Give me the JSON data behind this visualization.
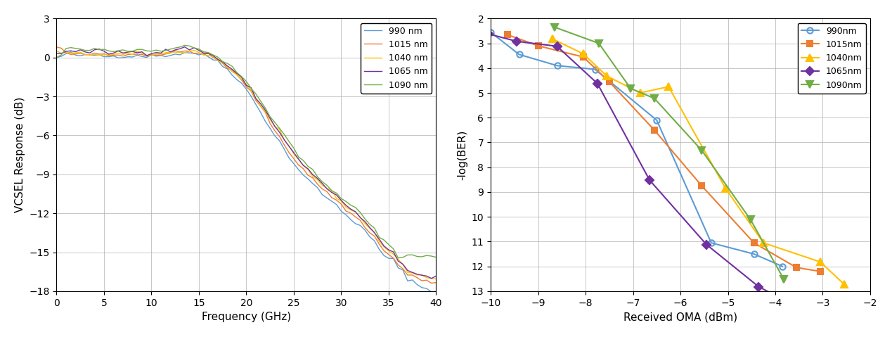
{
  "left_plot": {
    "xlabel": "Frequency (GHz)",
    "ylabel": "VCSEL Response (dB)",
    "xlim": [
      0,
      40
    ],
    "ylim": [
      -18,
      3
    ],
    "yticks": [
      3,
      0,
      -3,
      -6,
      -9,
      -12,
      -15,
      -18
    ],
    "xticks": [
      0,
      5,
      10,
      15,
      20,
      25,
      30,
      35,
      40
    ],
    "series": [
      {
        "label": "990 nm",
        "color": "#5b9bd5",
        "freq": [
          0,
          0.5,
          1,
          1.5,
          2,
          2.5,
          3,
          3.5,
          4,
          4.5,
          5,
          5.5,
          6,
          6.5,
          7,
          7.5,
          8,
          8.5,
          9,
          9.5,
          10,
          10.5,
          11,
          11.5,
          12,
          12.5,
          13,
          13.5,
          14,
          14.5,
          15,
          15.5,
          16,
          16.5,
          17,
          17.5,
          18,
          18.5,
          19,
          19.5,
          20,
          20.5,
          21,
          21.5,
          22,
          22.5,
          23,
          23.5,
          24,
          24.5,
          25,
          25.5,
          26,
          26.5,
          27,
          27.5,
          28,
          28.5,
          29,
          29.5,
          30,
          30.5,
          31,
          31.5,
          32,
          32.5,
          33,
          33.5,
          34,
          34.5,
          35,
          35.5,
          36,
          36.5,
          37,
          37.5,
          38,
          38.5,
          39,
          39.5,
          40
        ],
        "vals": [
          0,
          0.1,
          0.25,
          0.3,
          0.2,
          0.15,
          0.1,
          0.15,
          0.2,
          0.15,
          0.1,
          0.1,
          0.1,
          0.12,
          0.12,
          0.1,
          0.12,
          0.15,
          0.15,
          0.12,
          0.1,
          0.12,
          0.15,
          0.18,
          0.2,
          0.25,
          0.3,
          0.35,
          0.4,
          0.35,
          0.25,
          0.15,
          0.05,
          -0.1,
          -0.3,
          -0.6,
          -0.9,
          -1.2,
          -1.6,
          -2.0,
          -2.5,
          -3.0,
          -3.6,
          -4.2,
          -4.8,
          -5.4,
          -6.0,
          -6.5,
          -7.1,
          -7.6,
          -8.2,
          -8.6,
          -9.0,
          -9.4,
          -9.8,
          -10.1,
          -10.5,
          -10.8,
          -11.1,
          -11.4,
          -11.8,
          -12.1,
          -12.4,
          -12.7,
          -13.0,
          -13.4,
          -13.8,
          -14.2,
          -14.8,
          -15.2,
          -15.5,
          -15.6,
          -16.2,
          -16.5,
          -17.0,
          -17.2,
          -17.5,
          -17.7,
          -17.8,
          -17.9,
          -18.0
        ]
      },
      {
        "label": "1015 nm",
        "color": "#ed7d31",
        "freq": [
          0,
          0.5,
          1,
          1.5,
          2,
          2.5,
          3,
          3.5,
          4,
          4.5,
          5,
          5.5,
          6,
          6.5,
          7,
          7.5,
          8,
          8.5,
          9,
          9.5,
          10,
          10.5,
          11,
          11.5,
          12,
          12.5,
          13,
          13.5,
          14,
          14.5,
          15,
          15.5,
          16,
          16.5,
          17,
          17.5,
          18,
          18.5,
          19,
          19.5,
          20,
          20.5,
          21,
          21.5,
          22,
          22.5,
          23,
          23.5,
          24,
          24.5,
          25,
          25.5,
          26,
          26.5,
          27,
          27.5,
          28,
          28.5,
          29,
          29.5,
          30,
          30.5,
          31,
          31.5,
          32,
          32.5,
          33,
          33.5,
          34,
          34.5,
          35,
          35.5,
          36,
          36.5,
          37,
          37.5,
          38,
          38.5,
          39,
          39.5,
          40
        ],
        "vals": [
          0.8,
          0.6,
          0.4,
          0.3,
          0.3,
          0.25,
          0.2,
          0.25,
          0.3,
          0.25,
          0.2,
          0.2,
          0.2,
          0.22,
          0.22,
          0.2,
          0.22,
          0.25,
          0.25,
          0.22,
          0.2,
          0.22,
          0.25,
          0.28,
          0.32,
          0.38,
          0.42,
          0.48,
          0.5,
          0.45,
          0.35,
          0.25,
          0.12,
          0.0,
          -0.2,
          -0.45,
          -0.75,
          -1.05,
          -1.4,
          -1.8,
          -2.2,
          -2.7,
          -3.2,
          -3.8,
          -4.4,
          -5.0,
          -5.6,
          -6.1,
          -6.7,
          -7.2,
          -7.8,
          -8.2,
          -8.6,
          -9.0,
          -9.4,
          -9.7,
          -10.1,
          -10.4,
          -10.7,
          -11.0,
          -11.4,
          -11.7,
          -12.0,
          -12.3,
          -12.6,
          -13.0,
          -13.4,
          -13.8,
          -14.4,
          -14.9,
          -15.2,
          -15.4,
          -16.0,
          -16.3,
          -16.7,
          -16.9,
          -17.0,
          -17.1,
          -17.2,
          -17.3,
          -17.4
        ]
      },
      {
        "label": "1040 nm",
        "color": "#ffc000",
        "freq": [
          0,
          0.5,
          1,
          1.5,
          2,
          2.5,
          3,
          3.5,
          4,
          4.5,
          5,
          5.5,
          6,
          6.5,
          7,
          7.5,
          8,
          8.5,
          9,
          9.5,
          10,
          10.5,
          11,
          11.5,
          12,
          12.5,
          13,
          13.5,
          14,
          14.5,
          15,
          15.5,
          16,
          16.5,
          17,
          17.5,
          18,
          18.5,
          19,
          19.5,
          20,
          20.5,
          21,
          21.5,
          22,
          22.5,
          23,
          23.5,
          24,
          24.5,
          25,
          25.5,
          26,
          26.5,
          27,
          27.5,
          28,
          28.5,
          29,
          29.5,
          30,
          30.5,
          31,
          31.5,
          32,
          32.5,
          33,
          33.5,
          34,
          34.5,
          35,
          35.5,
          36,
          36.5,
          37,
          37.5,
          38,
          38.5,
          39,
          39.5,
          40
        ],
        "vals": [
          0.5,
          0.4,
          0.35,
          0.3,
          0.3,
          0.25,
          0.25,
          0.28,
          0.3,
          0.25,
          0.22,
          0.22,
          0.22,
          0.24,
          0.24,
          0.22,
          0.24,
          0.28,
          0.28,
          0.24,
          0.22,
          0.24,
          0.28,
          0.32,
          0.36,
          0.42,
          0.46,
          0.5,
          0.52,
          0.48,
          0.38,
          0.28,
          0.15,
          0.02,
          -0.18,
          -0.42,
          -0.72,
          -1.0,
          -1.35,
          -1.72,
          -2.15,
          -2.6,
          -3.1,
          -3.65,
          -4.2,
          -4.8,
          -5.35,
          -5.85,
          -6.4,
          -6.9,
          -7.5,
          -7.9,
          -8.3,
          -8.7,
          -9.1,
          -9.4,
          -9.8,
          -10.1,
          -10.4,
          -10.7,
          -11.1,
          -11.4,
          -11.7,
          -12.0,
          -12.3,
          -12.7,
          -13.1,
          -13.5,
          -14.1,
          -14.6,
          -14.9,
          -15.1,
          -15.7,
          -16.0,
          -16.4,
          -16.6,
          -16.7,
          -16.8,
          -16.9,
          -17.0,
          -17.1
        ]
      },
      {
        "label": "1065 nm",
        "color": "#7030a0",
        "freq": [
          0,
          0.5,
          1,
          1.5,
          2,
          2.5,
          3,
          3.5,
          4,
          4.5,
          5,
          5.5,
          6,
          6.5,
          7,
          7.5,
          8,
          8.5,
          9,
          9.5,
          10,
          10.5,
          11,
          11.5,
          12,
          12.5,
          13,
          13.5,
          14,
          14.5,
          15,
          15.5,
          16,
          16.5,
          17,
          17.5,
          18,
          18.5,
          19,
          19.5,
          20,
          20.5,
          21,
          21.5,
          22,
          22.5,
          23,
          23.5,
          24,
          24.5,
          25,
          25.5,
          26,
          26.5,
          27,
          27.5,
          28,
          28.5,
          29,
          29.5,
          30,
          30.5,
          31,
          31.5,
          32,
          32.5,
          33,
          33.5,
          34,
          34.5,
          35,
          35.5,
          36,
          36.5,
          37,
          37.5,
          38,
          38.5,
          39,
          39.5,
          40
        ],
        "vals": [
          0.3,
          0.4,
          0.5,
          0.55,
          0.5,
          0.45,
          0.4,
          0.45,
          0.52,
          0.48,
          0.4,
          0.38,
          0.38,
          0.4,
          0.4,
          0.38,
          0.4,
          0.44,
          0.44,
          0.4,
          0.38,
          0.4,
          0.44,
          0.5,
          0.55,
          0.62,
          0.66,
          0.7,
          0.7,
          0.65,
          0.55,
          0.42,
          0.28,
          0.12,
          -0.1,
          -0.35,
          -0.62,
          -0.92,
          -1.28,
          -1.65,
          -2.05,
          -2.5,
          -3.0,
          -3.55,
          -4.1,
          -4.7,
          -5.25,
          -5.75,
          -6.3,
          -6.8,
          -7.4,
          -7.85,
          -8.25,
          -8.65,
          -9.05,
          -9.38,
          -9.75,
          -10.05,
          -10.35,
          -10.65,
          -11.05,
          -11.38,
          -11.68,
          -11.98,
          -12.28,
          -12.68,
          -13.08,
          -13.48,
          -14.08,
          -14.58,
          -14.88,
          -15.08,
          -15.68,
          -15.98,
          -16.38,
          -16.58,
          -16.68,
          -16.78,
          -16.88,
          -16.95,
          -17.0
        ]
      },
      {
        "label": "1090 nm",
        "color": "#70ad47",
        "freq": [
          0,
          0.5,
          1,
          1.5,
          2,
          2.5,
          3,
          3.5,
          4,
          4.5,
          5,
          5.5,
          6,
          6.5,
          7,
          7.5,
          8,
          8.5,
          9,
          9.5,
          10,
          10.5,
          11,
          11.5,
          12,
          12.5,
          13,
          13.5,
          14,
          14.5,
          15,
          15.5,
          16,
          16.5,
          17,
          17.5,
          18,
          18.5,
          19,
          19.5,
          20,
          20.5,
          21,
          21.5,
          22,
          22.5,
          23,
          23.5,
          24,
          24.5,
          25,
          25.5,
          26,
          26.5,
          27,
          27.5,
          28,
          28.5,
          29,
          29.5,
          30,
          30.5,
          31,
          31.5,
          32,
          32.5,
          33,
          33.5,
          34,
          34.5,
          35,
          35.5,
          36,
          36.5,
          37,
          37.5,
          38,
          38.5,
          39,
          39.5,
          40
        ],
        "vals": [
          0.0,
          0.3,
          0.6,
          0.7,
          0.65,
          0.6,
          0.55,
          0.62,
          0.7,
          0.65,
          0.55,
          0.52,
          0.52,
          0.55,
          0.55,
          0.52,
          0.55,
          0.6,
          0.6,
          0.55,
          0.52,
          0.55,
          0.6,
          0.65,
          0.7,
          0.75,
          0.78,
          0.82,
          0.82,
          0.75,
          0.65,
          0.52,
          0.38,
          0.22,
          0.0,
          -0.25,
          -0.5,
          -0.8,
          -1.15,
          -1.5,
          -1.9,
          -2.35,
          -2.82,
          -3.35,
          -3.9,
          -4.5,
          -5.0,
          -5.5,
          -6.05,
          -6.55,
          -7.15,
          -7.6,
          -8.0,
          -8.4,
          -8.8,
          -9.12,
          -9.5,
          -9.8,
          -10.1,
          -10.4,
          -10.8,
          -11.1,
          -11.4,
          -11.7,
          -12.0,
          -12.38,
          -12.78,
          -13.18,
          -13.75,
          -14.2,
          -14.5,
          -14.7,
          -15.3,
          -15.5,
          -15.2,
          -15.3,
          -15.2,
          -15.3,
          -15.25,
          -15.3,
          -15.35
        ]
      }
    ]
  },
  "right_plot": {
    "xlabel": "Received OMA (dBm)",
    "ylabel": "-log(BER)",
    "xlim": [
      -10,
      -2
    ],
    "ylim": [
      2,
      13
    ],
    "yticks": [
      2,
      3,
      4,
      5,
      6,
      7,
      8,
      9,
      10,
      11,
      12,
      13
    ],
    "xticks": [
      -10,
      -9,
      -8,
      -7,
      -6,
      -5,
      -4,
      -3,
      -2
    ],
    "series": [
      {
        "label": "990nm",
        "color": "#5b9bd5",
        "marker": "o",
        "oma": [
          -10.0,
          -9.4,
          -8.6,
          -7.8,
          -6.5,
          -5.35,
          -4.45,
          -3.85
        ],
        "logber": [
          2.55,
          3.45,
          3.9,
          4.05,
          6.1,
          11.05,
          11.5,
          12.0
        ]
      },
      {
        "label": "1015nm",
        "color": "#ed7d31",
        "marker": "s",
        "oma": [
          -9.65,
          -9.0,
          -8.05,
          -7.5,
          -6.55,
          -5.55,
          -4.45,
          -3.55,
          -3.05
        ],
        "logber": [
          2.65,
          3.1,
          3.55,
          4.55,
          6.5,
          8.75,
          11.05,
          12.05,
          12.2
        ]
      },
      {
        "label": "1040nm",
        "color": "#ffc000",
        "marker": "^",
        "oma": [
          -8.7,
          -8.05,
          -7.55,
          -6.85,
          -6.25,
          -5.05,
          -4.25,
          -3.05,
          -2.55
        ],
        "logber": [
          2.82,
          3.42,
          4.32,
          5.0,
          4.75,
          8.85,
          11.05,
          11.82,
          12.72
        ]
      },
      {
        "label": "1065nm",
        "color": "#7030a0",
        "marker": "D",
        "oma": [
          -10.05,
          -9.45,
          -8.6,
          -7.75,
          -6.65,
          -5.45,
          -4.35,
          -3.85
        ],
        "logber": [
          2.62,
          2.92,
          3.12,
          4.62,
          8.52,
          11.12,
          12.82,
          13.32
        ]
      },
      {
        "label": "1090nm",
        "color": "#70ad47",
        "marker": "v",
        "oma": [
          -8.65,
          -7.72,
          -7.05,
          -6.55,
          -5.55,
          -4.52,
          -3.82
        ],
        "logber": [
          2.35,
          3.0,
          4.82,
          5.22,
          7.32,
          10.12,
          12.52
        ]
      }
    ]
  }
}
